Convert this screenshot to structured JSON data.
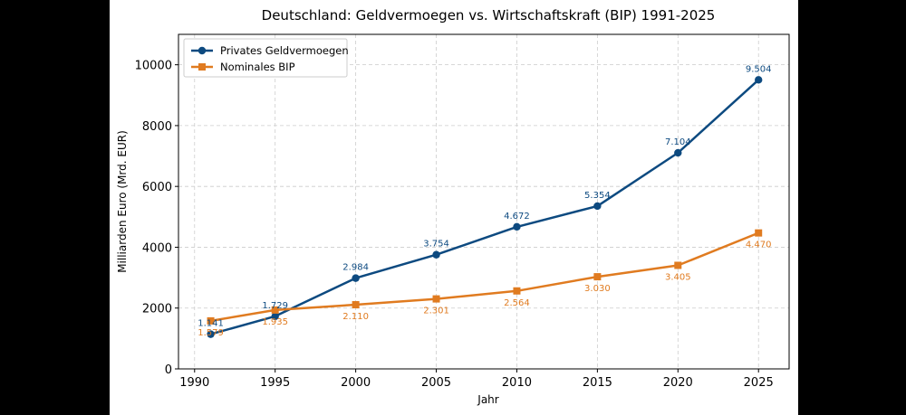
{
  "chart_data": {
    "type": "line",
    "title": "Deutschland: Geldvermoegen vs. Wirtschaftskraft (BIP) 1991-2025",
    "xlabel": "Jahr",
    "ylabel": "Milliarden Euro (Mrd. EUR)",
    "x": [
      1991,
      1995,
      2000,
      2005,
      2010,
      2015,
      2020,
      2025
    ],
    "xlim": [
      1989,
      2026.9
    ],
    "ylim": [
      0,
      11000
    ],
    "xticks": [
      1990,
      1995,
      2000,
      2005,
      2010,
      2015,
      2020,
      2025
    ],
    "xtick_labels": [
      "1990",
      "1995",
      "2000",
      "2005",
      "2010",
      "2015",
      "2020",
      "2025"
    ],
    "yticks": [
      0,
      2000,
      4000,
      6000,
      8000,
      10000
    ],
    "ytick_labels": [
      "0",
      "2000",
      "4000",
      "6000",
      "8000",
      "10000"
    ],
    "grid": true,
    "legend_position": "top-left",
    "series": [
      {
        "name": "Privates Geldvermoegen",
        "color": "#0d4a80",
        "marker": "circle",
        "values": [
          1141,
          1729,
          2984,
          3754,
          4672,
          5354,
          7104,
          9504
        ],
        "labels": [
          "1.141",
          "1.729",
          "2.984",
          "3.754",
          "4.672",
          "5.354",
          "7.104",
          "9.504"
        ],
        "label_position": "above"
      },
      {
        "name": "Nominales BIP",
        "color": "#e07b20",
        "marker": "square",
        "values": [
          1579,
          1935,
          2110,
          2301,
          2564,
          3030,
          3405,
          4470
        ],
        "labels": [
          "1.579",
          "1.935",
          "2.110",
          "2.301",
          "2.564",
          "3.030",
          "3.405",
          "4.470"
        ],
        "label_position": "below"
      }
    ]
  }
}
